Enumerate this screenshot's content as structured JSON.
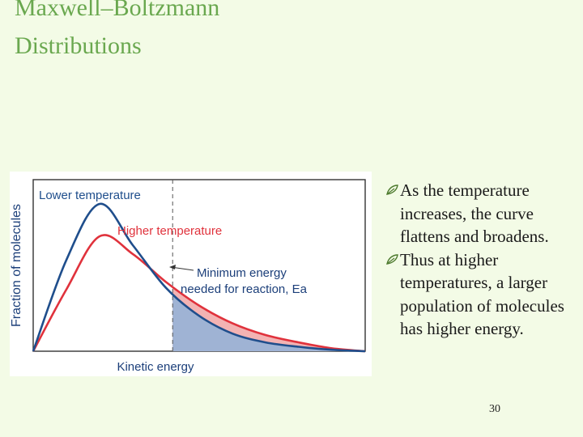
{
  "slide": {
    "title_line1": "Maxwell–Boltzmann",
    "title_line2": "Distributions",
    "bullets": [
      {
        "icon": "leaf-bullet-icon",
        "text": "As the temperature increases, the curve flattens and broadens."
      },
      {
        "icon": "leaf-bullet-icon",
        "text": "Thus at higher temperatures, a larger population of molecules has higher energy."
      }
    ],
    "page_number": "30"
  },
  "chart_data": {
    "type": "line",
    "ylabel": "Fraction of molecules",
    "xlabel": "Kinetic energy",
    "series": [
      {
        "name": "Lower temperature",
        "color": "#1f4e8c",
        "x": [
          0,
          0.1,
          0.2,
          0.3,
          0.4,
          0.5,
          0.6,
          0.7,
          0.8,
          0.9,
          1.0
        ],
        "y": [
          0,
          0.62,
          1.0,
          0.72,
          0.43,
          0.24,
          0.12,
          0.06,
          0.03,
          0.01,
          0.0
        ]
      },
      {
        "name": "Higher temperature",
        "color": "#e0323c",
        "x": [
          0,
          0.1,
          0.2,
          0.3,
          0.4,
          0.5,
          0.6,
          0.7,
          0.8,
          0.9,
          1.0
        ],
        "y": [
          0,
          0.42,
          0.78,
          0.66,
          0.47,
          0.31,
          0.19,
          0.11,
          0.06,
          0.02,
          0.0
        ]
      }
    ],
    "annotation": {
      "label_line1": "Minimum energy",
      "label_line2": "needed for reaction, Ea",
      "x": 0.42
    },
    "shading": {
      "lower_color": "#9fb3d4",
      "higher_color": "#f3b3b3"
    }
  }
}
